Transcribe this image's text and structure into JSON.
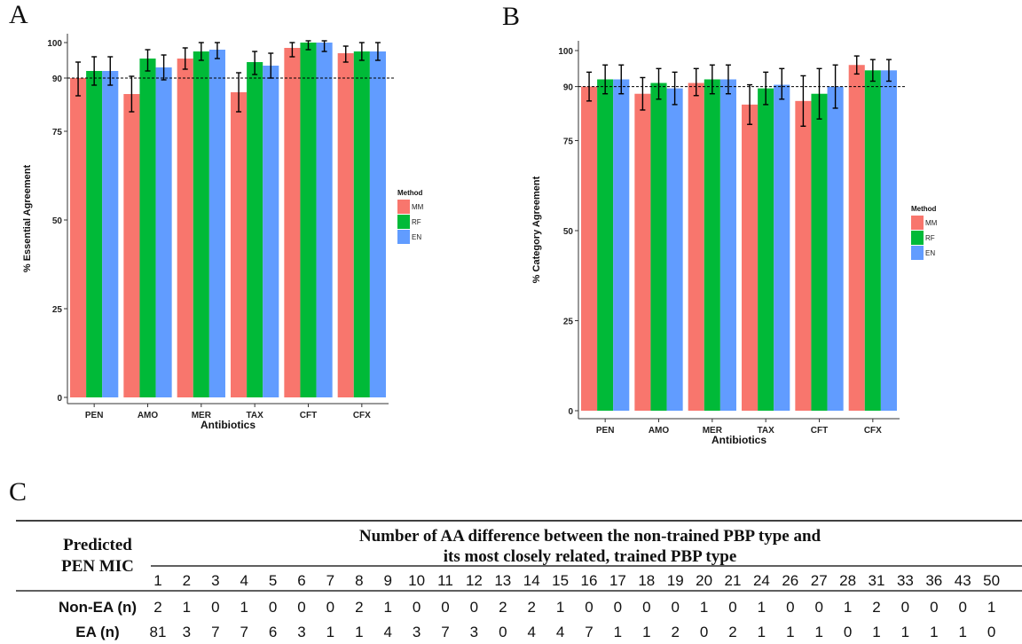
{
  "panels": {
    "a_letter": "A",
    "b_letter": "B",
    "c_letter": "C"
  },
  "chart_data": [
    {
      "type": "bar",
      "panel": "A",
      "categories": [
        "PEN",
        "AMO",
        "MER",
        "TAX",
        "CFT",
        "CFX"
      ],
      "series": [
        {
          "name": "MM",
          "color": "#F8766D",
          "values": [
            90,
            85.5,
            95.5,
            86,
            98.5,
            97
          ],
          "err_low": [
            85,
            80.5,
            92.5,
            80.5,
            96,
            94.5
          ],
          "err_high": [
            94.5,
            90.5,
            98.5,
            91.5,
            100,
            99
          ]
        },
        {
          "name": "RF",
          "color": "#00BA38",
          "values": [
            92,
            95.5,
            97.5,
            94.5,
            100,
            97.5
          ],
          "err_low": [
            88,
            92,
            95,
            91,
            98,
            95
          ],
          "err_high": [
            96,
            98,
            100,
            97.5,
            100.5,
            100
          ]
        },
        {
          "name": "EN",
          "color": "#619CFF",
          "values": [
            92,
            93,
            98,
            93.5,
            100,
            97.5
          ],
          "err_low": [
            88,
            89.5,
            95.5,
            90,
            97.5,
            95
          ],
          "err_high": [
            96,
            96.5,
            100,
            97,
            100.5,
            100
          ]
        }
      ],
      "xlabel": "Antibiotics",
      "ylabel": "% Essential Agreement",
      "ylim": [
        0,
        100
      ],
      "yticks": [
        0,
        25,
        50,
        75,
        90,
        100
      ],
      "reference_line": 90,
      "legend_title": "Method",
      "legend_position": "right",
      "grid": false
    },
    {
      "type": "bar",
      "panel": "B",
      "categories": [
        "PEN",
        "AMO",
        "MER",
        "TAX",
        "CFT",
        "CFX"
      ],
      "series": [
        {
          "name": "MM",
          "color": "#F8766D",
          "values": [
            90,
            88,
            91,
            85,
            86,
            96
          ],
          "err_low": [
            86,
            83.5,
            87.5,
            79.5,
            79,
            93.5
          ],
          "err_high": [
            94,
            92.5,
            95,
            90.5,
            93,
            98.5
          ]
        },
        {
          "name": "RF",
          "color": "#00BA38",
          "values": [
            92,
            91,
            92,
            89.5,
            88,
            94.5
          ],
          "err_low": [
            88,
            86.5,
            88,
            85,
            81,
            91.5
          ],
          "err_high": [
            96,
            95,
            96,
            94,
            95,
            97.5
          ]
        },
        {
          "name": "EN",
          "color": "#619CFF",
          "values": [
            92,
            89.5,
            92,
            90.5,
            90,
            94.5
          ],
          "err_low": [
            88,
            85,
            88,
            86.5,
            84,
            91.5
          ],
          "err_high": [
            96,
            94,
            96,
            95,
            96,
            97.5
          ]
        }
      ],
      "xlabel": "Antibiotics",
      "ylabel": "% Category Agreement",
      "ylim": [
        0,
        100
      ],
      "yticks": [
        0,
        25,
        50,
        75,
        90,
        100
      ],
      "reference_line": 90,
      "legend_title": "Method",
      "legend_position": "right",
      "grid": false
    },
    {
      "type": "table",
      "panel": "C",
      "row_header": "Predicted PEN MIC",
      "column_group_title_line1": "Number of AA difference between the non-trained PBP type and",
      "column_group_title_line2": "its most closely related, trained PBP type",
      "columns": [
        "1",
        "2",
        "3",
        "4",
        "5",
        "6",
        "7",
        "8",
        "9",
        "10",
        "11",
        "12",
        "13",
        "14",
        "15",
        "16",
        "17",
        "18",
        "19",
        "20",
        "21",
        "24",
        "26",
        "27",
        "28",
        "31",
        "33",
        "36",
        "43",
        "50"
      ],
      "rows": [
        {
          "label": "Non-EA (n)",
          "values": [
            "2",
            "1",
            "0",
            "1",
            "0",
            "0",
            "0",
            "2",
            "1",
            "0",
            "0",
            "0",
            "2",
            "2",
            "1",
            "0",
            "0",
            "0",
            "0",
            "1",
            "0",
            "1",
            "0",
            "0",
            "1",
            "2",
            "0",
            "0",
            "0",
            "1"
          ]
        },
        {
          "label": "EA (n)",
          "values": [
            "81",
            "3",
            "7",
            "7",
            "6",
            "3",
            "1",
            "1",
            "4",
            "3",
            "7",
            "3",
            "0",
            "4",
            "4",
            "7",
            "1",
            "1",
            "2",
            "0",
            "2",
            "1",
            "1",
            "1",
            "0",
            "1",
            "1",
            "1",
            "1",
            "0"
          ]
        }
      ]
    }
  ]
}
